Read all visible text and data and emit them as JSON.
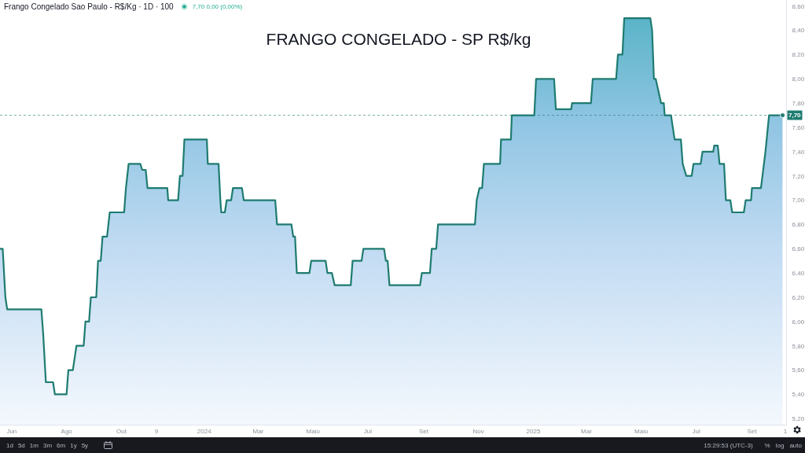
{
  "chart_data": {
    "type": "area",
    "title": "FRANGO CONGELADO - SP R$/kg",
    "subtitle": "Frango Congelado Sao Paulo - R$/Kg · 1D · 100",
    "annotations": [
      "7,70 0,00 (0,00%)",
      "1d",
      "5d",
      "1m",
      "3m",
      "6m",
      "1y",
      "5y",
      "15:29:53 (UTC-3)",
      "%",
      "log",
      "auto"
    ],
    "color": "#1e7b70",
    "x": [
      "2023-05-19",
      "2023-05-22",
      "2023-05-25",
      "2023-05-27",
      "2023-07-04",
      "2023-07-06",
      "2023-07-09",
      "2023-07-17",
      "2023-07-19",
      "2023-08-01",
      "2023-08-03",
      "2023-08-08",
      "2023-08-10",
      "2023-08-12",
      "2023-08-20",
      "2023-08-22",
      "2023-08-26",
      "2023-08-28",
      "2023-09-03",
      "2023-09-05",
      "2023-09-08",
      "2023-09-10",
      "2023-09-15",
      "2023-09-18",
      "2023-10-04",
      "2023-10-06",
      "2023-10-09",
      "2023-10-22",
      "2023-10-24",
      "2023-10-28",
      "2023-10-30",
      "2023-11-21",
      "2023-11-22",
      "2023-12-03",
      "2023-12-05",
      "2023-12-08",
      "2023-12-10",
      "2024-01-04",
      "2024-01-05",
      "2024-01-17",
      "2024-01-19",
      "2024-01-20",
      "2024-01-24",
      "2024-01-26",
      "2024-01-31",
      "2024-02-02",
      "2024-02-12",
      "2024-02-14",
      "2024-03-20",
      "2024-03-22",
      "2024-04-07",
      "2024-04-09",
      "2024-04-11",
      "2024-04-13",
      "2024-04-27",
      "2024-04-29",
      "2024-05-15",
      "2024-05-17",
      "2024-05-22",
      "2024-05-25",
      "2024-06-12",
      "2024-06-14",
      "2024-06-24",
      "2024-06-26",
      "2024-07-19",
      "2024-07-21",
      "2024-07-23",
      "2024-07-25",
      "2024-08-28",
      "2024-08-30",
      "2024-09-08",
      "2024-09-10",
      "2024-09-15",
      "2024-09-17",
      "2024-10-28",
      "2024-10-30",
      "2024-11-02",
      "2024-11-05",
      "2024-11-07",
      "2024-11-25",
      "2024-11-26",
      "2024-12-07",
      "2024-12-08",
      "2025-01-02",
      "2025-01-04",
      "2025-01-24",
      "2025-01-26",
      "2025-02-12",
      "2025-02-13",
      "2025-03-06",
      "2025-03-08",
      "2025-04-03",
      "2025-04-05",
      "2025-04-10",
      "2025-04-12",
      "2025-05-11",
      "2025-05-13",
      "2025-05-15",
      "2025-05-17",
      "2025-05-20",
      "2025-05-23",
      "2025-05-26",
      "2025-05-27",
      "2025-06-03",
      "2025-06-07",
      "2025-06-14",
      "2025-06-16",
      "2025-06-20",
      "2025-06-26",
      "2025-06-28",
      "2025-07-06",
      "2025-07-08",
      "2025-07-20",
      "2025-07-21",
      "2025-07-25",
      "2025-07-27",
      "2025-08-01",
      "2025-08-03",
      "2025-08-08",
      "2025-08-10",
      "2025-08-23",
      "2025-08-25",
      "2025-08-31",
      "2025-09-01",
      "2025-09-11",
      "2025-09-16",
      "2025-09-20",
      "2025-10-05"
    ],
    "values": [
      6.6,
      6.6,
      6.2,
      6.1,
      6.1,
      5.9,
      5.5,
      5.5,
      5.4,
      5.4,
      5.6,
      5.6,
      5.7,
      5.8,
      5.8,
      6.0,
      6.0,
      6.2,
      6.2,
      6.5,
      6.5,
      6.7,
      6.7,
      6.9,
      6.9,
      7.1,
      7.3,
      7.3,
      7.25,
      7.25,
      7.1,
      7.1,
      7.0,
      7.0,
      7.2,
      7.2,
      7.5,
      7.5,
      7.3,
      7.3,
      7.0,
      6.9,
      6.9,
      7.0,
      7.0,
      7.1,
      7.1,
      7.0,
      7.0,
      6.8,
      6.8,
      6.7,
      6.7,
      6.4,
      6.4,
      6.5,
      6.5,
      6.4,
      6.4,
      6.3,
      6.3,
      6.5,
      6.5,
      6.6,
      6.6,
      6.5,
      6.5,
      6.3,
      6.3,
      6.4,
      6.4,
      6.6,
      6.6,
      6.8,
      6.8,
      7.0,
      7.1,
      7.1,
      7.3,
      7.3,
      7.5,
      7.5,
      7.7,
      7.7,
      8.0,
      8.0,
      7.75,
      7.75,
      7.8,
      7.8,
      8.0,
      8.0,
      8.2,
      8.2,
      8.5,
      8.5,
      8.4,
      8.0,
      8.0,
      7.9,
      7.8,
      7.8,
      7.7,
      7.7,
      7.5,
      7.5,
      7.3,
      7.2,
      7.2,
      7.3,
      7.3,
      7.4,
      7.4,
      7.45,
      7.45,
      7.3,
      7.3,
      7.0,
      7.0,
      6.9,
      6.9,
      7.0,
      7.0,
      7.1,
      7.1,
      7.4,
      7.7,
      7.7
    ],
    "xlim": [
      "2023-05-19",
      "2025-10-09"
    ],
    "xticks": [
      {
        "value": "2023-06-01",
        "label": "Jun"
      },
      {
        "value": "2023-08-01",
        "label": "Ago"
      },
      {
        "value": "2023-10-01",
        "label": "Out"
      },
      {
        "value": "2023-11-09",
        "label": "9"
      },
      {
        "value": "2024-01-01",
        "label": "2024"
      },
      {
        "value": "2024-03-01",
        "label": "Mar"
      },
      {
        "value": "2024-05-01",
        "label": "Maio"
      },
      {
        "value": "2024-07-01",
        "label": "Jul"
      },
      {
        "value": "2024-09-01",
        "label": "Set"
      },
      {
        "value": "2024-11-01",
        "label": "Nov"
      },
      {
        "value": "2025-01-01",
        "label": "2025"
      },
      {
        "value": "2025-03-01",
        "label": "Mar"
      },
      {
        "value": "2025-05-01",
        "label": "Maio"
      },
      {
        "value": "2025-07-01",
        "label": "Jul"
      },
      {
        "value": "2025-09-01",
        "label": "Set"
      },
      {
        "value": "2025-10-08",
        "label": "1"
      }
    ],
    "ylim": [
      5.15,
      8.65
    ],
    "yticks": [
      {
        "value": 5.2,
        "label": "5,20"
      },
      {
        "value": 5.4,
        "label": "5,40"
      },
      {
        "value": 5.6,
        "label": "5,60"
      },
      {
        "value": 5.8,
        "label": "5,80"
      },
      {
        "value": 6.0,
        "label": "6,00"
      },
      {
        "value": 6.2,
        "label": "6,20"
      },
      {
        "value": 6.4,
        "label": "6,40"
      },
      {
        "value": 6.6,
        "label": "6,60"
      },
      {
        "value": 6.8,
        "label": "6,80"
      },
      {
        "value": 7.0,
        "label": "7,00"
      },
      {
        "value": 7.2,
        "label": "7,20"
      },
      {
        "value": 7.4,
        "label": "7,40"
      },
      {
        "value": 7.6,
        "label": "7,60"
      },
      {
        "value": 7.8,
        "label": "7,80"
      },
      {
        "value": 8.0,
        "label": "8,00"
      },
      {
        "value": 8.2,
        "label": "8,20"
      },
      {
        "value": 8.4,
        "label": "8,40"
      },
      {
        "value": 8.6,
        "label": "8,60"
      }
    ],
    "ref_lines": [
      {
        "axis": "y",
        "value": 7.7,
        "label": "7,70",
        "color": "#1e7b70",
        "line_style": "dotted"
      }
    ]
  }
}
